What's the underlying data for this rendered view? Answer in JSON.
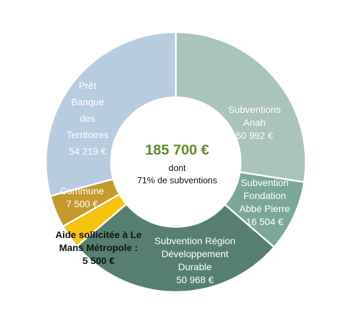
{
  "chart_data": {
    "type": "pie",
    "variant": "donut",
    "center": {
      "total": "185 700 €",
      "line1": "dont",
      "line2": "71% de subventions"
    },
    "slices": [
      {
        "name": "Subventions Anah",
        "value": 50992,
        "label_lines": [
          "Subventions",
          "Anah",
          "50 992 €"
        ],
        "color": "#a9c4bc"
      },
      {
        "name": "Subvention Fondation Abbé Pierre",
        "value": 16504,
        "label_lines": [
          "Subvention",
          "Fondation",
          "Abbé Pierre",
          "16 504 €"
        ],
        "color": "#79a899"
      },
      {
        "name": "Subvention Région Développement Durable",
        "value": 50968,
        "label_lines": [
          "Subvention Région",
          "Développement",
          "Durable",
          "50 968 €"
        ],
        "color": "#55806f"
      },
      {
        "name": "Aide sollicitée à Le Mans Métropole",
        "value": 5500,
        "label_lines": [
          "Aide sollicitée à  Le",
          "Mans Métropole :",
          "5 500 €"
        ],
        "color": "#f6c40f"
      },
      {
        "name": "Commune",
        "value": 7500,
        "label_lines": [
          "Commune",
          "7 500 €"
        ],
        "color": "#c49a2c"
      },
      {
        "name": "Prêt Banque des Territoires",
        "value": 54219,
        "label_lines": [
          "Prêt",
          "Banque",
          "des",
          "Territoires",
          "54 219 €"
        ],
        "color": "#b8cce0"
      }
    ]
  }
}
